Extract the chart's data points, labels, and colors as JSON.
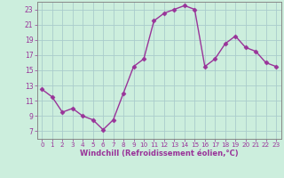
{
  "x": [
    0,
    1,
    2,
    3,
    4,
    5,
    6,
    7,
    8,
    9,
    10,
    11,
    12,
    13,
    14,
    15,
    16,
    17,
    18,
    19,
    20,
    21,
    22,
    23
  ],
  "y": [
    12.5,
    11.5,
    9.5,
    10.0,
    9.0,
    8.5,
    7.2,
    8.5,
    12.0,
    15.5,
    16.5,
    21.5,
    22.5,
    23.0,
    23.5,
    23.0,
    15.5,
    16.5,
    18.5,
    19.5,
    18.0,
    17.5,
    16.0,
    15.5
  ],
  "line_color": "#993399",
  "marker": "D",
  "markersize": 2.5,
  "linewidth": 1,
  "bg_color": "#cceedd",
  "grid_color": "#aacccc",
  "xlabel": "Windchill (Refroidissement éolien,°C)",
  "xlabel_color": "#993399",
  "tick_color": "#993399",
  "spine_color": "#888888",
  "ylim": [
    6,
    24
  ],
  "xlim": [
    -0.5,
    23.5
  ],
  "yticks": [
    7,
    9,
    11,
    13,
    15,
    17,
    19,
    21,
    23
  ],
  "xticks": [
    0,
    1,
    2,
    3,
    4,
    5,
    6,
    7,
    8,
    9,
    10,
    11,
    12,
    13,
    14,
    15,
    16,
    17,
    18,
    19,
    20,
    21,
    22,
    23
  ],
  "fig_bg_color": "#cceedd"
}
